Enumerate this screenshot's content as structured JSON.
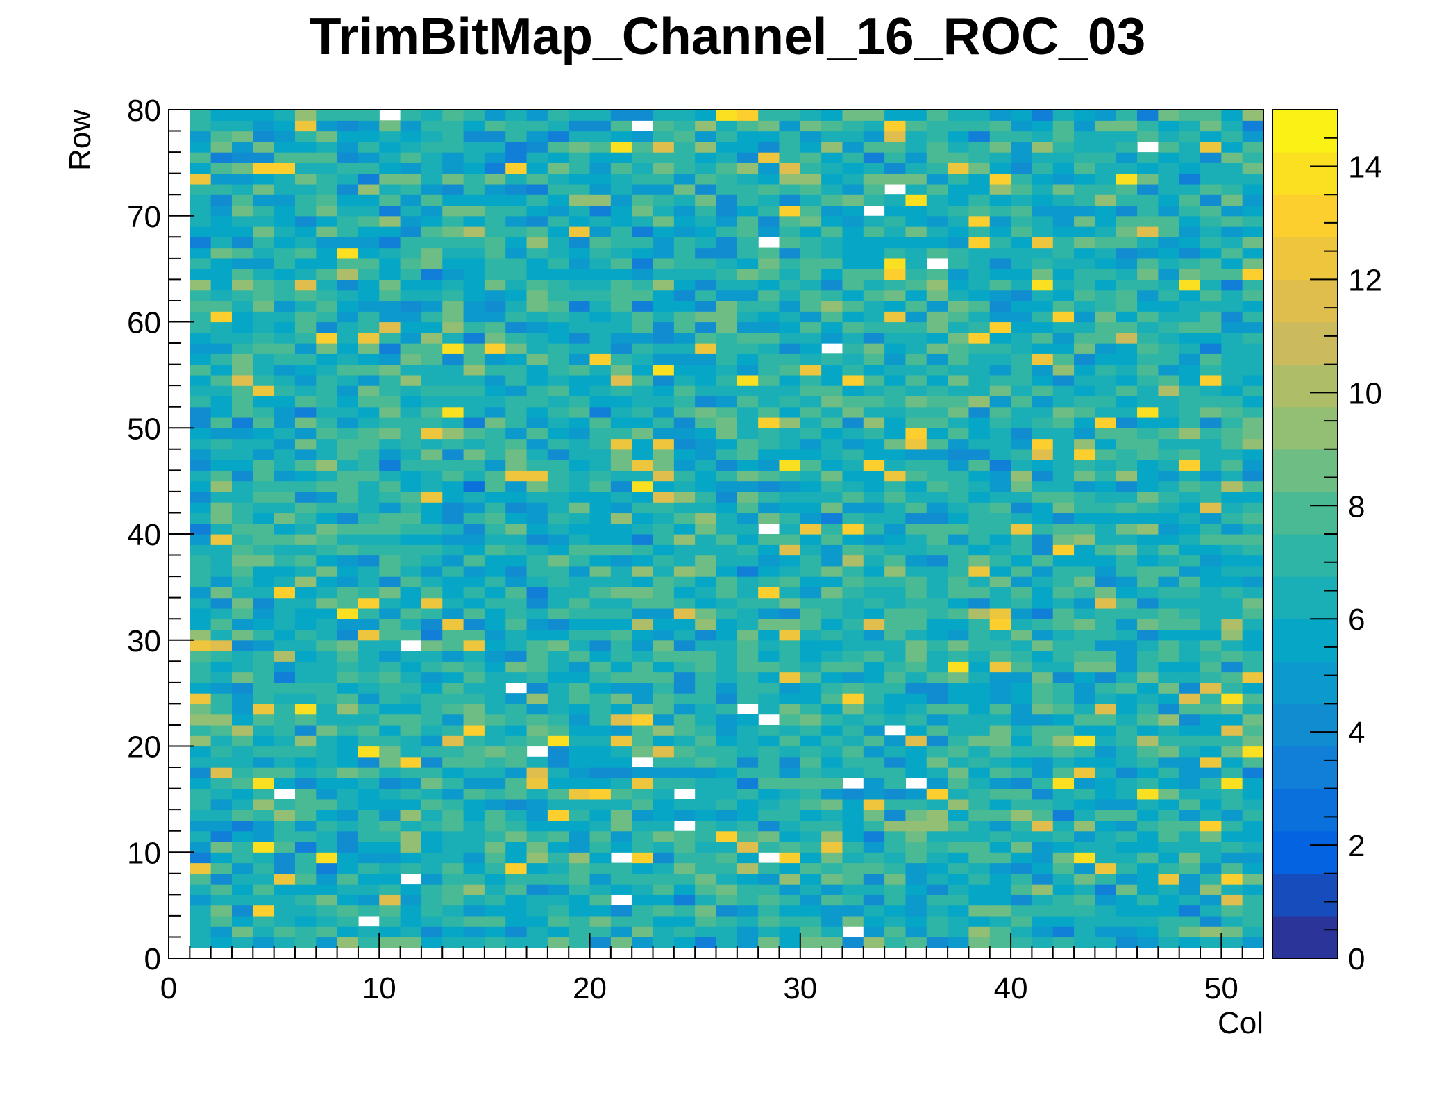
{
  "chart_data": {
    "type": "heatmap",
    "title": "TrimBitMap_Channel_16_ROC_03",
    "xlabel": "Col",
    "ylabel": "Row",
    "xlim": [
      0,
      52
    ],
    "ylim": [
      0,
      80
    ],
    "zlim": [
      0,
      15
    ],
    "x_ticks": [
      "0",
      "10",
      "20",
      "30",
      "40",
      "50"
    ],
    "y_ticks": [
      "0",
      "10",
      "20",
      "30",
      "40",
      "50",
      "60",
      "70",
      "80"
    ],
    "z_ticks": [
      "0",
      "2",
      "4",
      "6",
      "8",
      "10",
      "12",
      "14"
    ],
    "bins": {
      "x_first": 1,
      "x_last": 51,
      "y_first": 1,
      "y_last": 79
    },
    "value_distribution": "mostly 4 to 9, median about 6.5; occasional yellow cells at 12 to 14; a few empty (white) cells",
    "empty_cells": [
      [
        10,
        79
      ],
      [
        22,
        78
      ],
      [
        34,
        72
      ],
      [
        33,
        70
      ],
      [
        28,
        67
      ],
      [
        36,
        65
      ],
      [
        31,
        57
      ],
      [
        28,
        40
      ],
      [
        11,
        29
      ],
      [
        16,
        25
      ],
      [
        27,
        23
      ],
      [
        28,
        22
      ],
      [
        34,
        21
      ],
      [
        17,
        19
      ],
      [
        22,
        18
      ],
      [
        32,
        16
      ],
      [
        35,
        16
      ],
      [
        5,
        15
      ],
      [
        24,
        15
      ],
      [
        24,
        12
      ],
      [
        21,
        9
      ],
      [
        28,
        9
      ],
      [
        11,
        7
      ],
      [
        21,
        5
      ],
      [
        9,
        3
      ],
      [
        32,
        2
      ],
      [
        46,
        76
      ]
    ],
    "palette": "kBird",
    "palette_colors": [
      "#352a87",
      "#0363e1",
      "#1485d4",
      "#06a7c6",
      "#38b99e",
      "#92bf73",
      "#d9ba56",
      "#fcce2e",
      "#f9fb0e"
    ]
  }
}
